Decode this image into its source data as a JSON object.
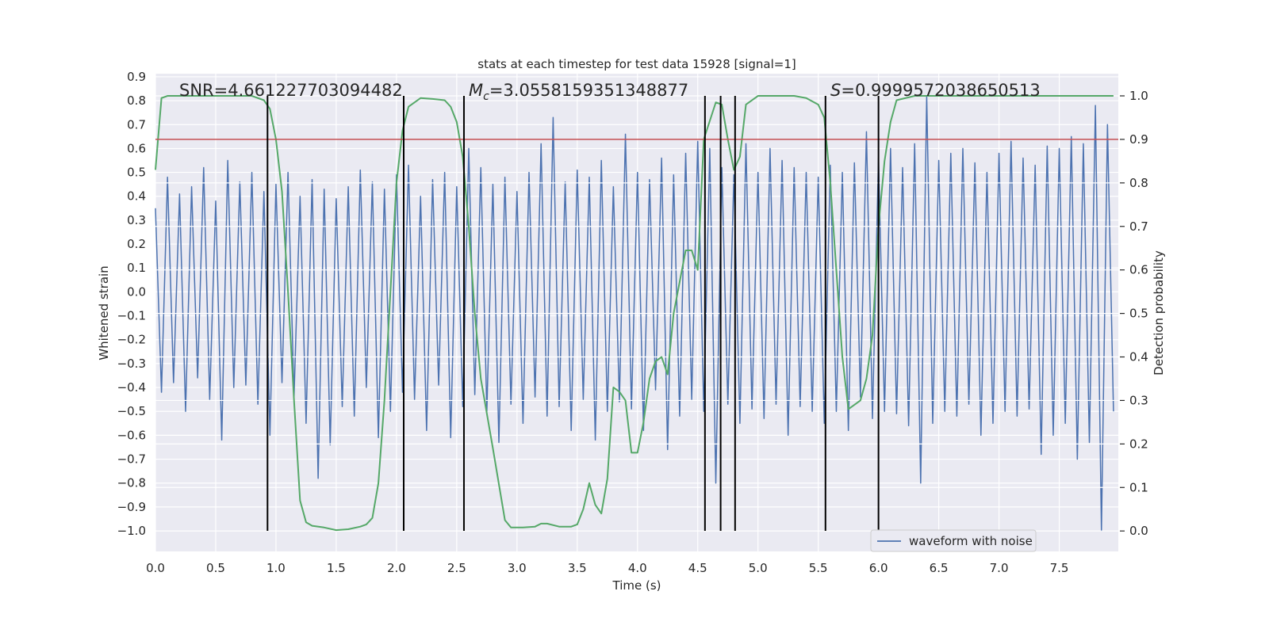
{
  "chart_data": {
    "type": "line",
    "title": "stats at each timestep for test data 15928 [signal=1]",
    "x_label": "Time (s)",
    "y_label": "Whitened strain",
    "y2_label": "Detection probability",
    "annotations": [
      {
        "text": "SNR=4.661227703094482"
      },
      {
        "symbol": "M",
        "subscript": "c",
        "text": "=3.0558159351348877"
      },
      {
        "symbol": "S",
        "text": "=0.9999572038650513"
      }
    ],
    "xlim": [
      0,
      7.99
    ],
    "ylim": [
      -1.086,
      0.913
    ],
    "y2lim": [
      -0.047,
      1.051
    ],
    "xticks": [
      {
        "value": 0,
        "label": "0.0"
      },
      {
        "value": 0.5,
        "label": "0.5"
      },
      {
        "value": 1,
        "label": "1.0"
      },
      {
        "value": 1.5,
        "label": "1.5"
      },
      {
        "value": 2,
        "label": "2.0"
      },
      {
        "value": 2.5,
        "label": "2.5"
      },
      {
        "value": 3,
        "label": "3.0"
      },
      {
        "value": 3.5,
        "label": "3.5"
      },
      {
        "value": 4,
        "label": "4.0"
      },
      {
        "value": 4.5,
        "label": "4.5"
      },
      {
        "value": 5,
        "label": "5.0"
      },
      {
        "value": 5.5,
        "label": "5.5"
      },
      {
        "value": 6,
        "label": "6.0"
      },
      {
        "value": 6.5,
        "label": "6.5"
      },
      {
        "value": 7,
        "label": "7.0"
      },
      {
        "value": 7.5,
        "label": "7.5"
      }
    ],
    "yticks": [
      {
        "value": -1,
        "label": "−1.0"
      },
      {
        "value": -0.9,
        "label": "−0.9"
      },
      {
        "value": -0.8,
        "label": "−0.8"
      },
      {
        "value": -0.7,
        "label": "−0.7"
      },
      {
        "value": -0.6,
        "label": "−0.6"
      },
      {
        "value": -0.5,
        "label": "−0.5"
      },
      {
        "value": -0.4,
        "label": "−0.4"
      },
      {
        "value": -0.3,
        "label": "−0.3"
      },
      {
        "value": -0.2,
        "label": "−0.2"
      },
      {
        "value": -0.1,
        "label": "−0.1"
      },
      {
        "value": 0,
        "label": "0.0"
      },
      {
        "value": 0.1,
        "label": "0.1"
      },
      {
        "value": 0.2,
        "label": "0.2"
      },
      {
        "value": 0.3,
        "label": "0.3"
      },
      {
        "value": 0.4,
        "label": "0.4"
      },
      {
        "value": 0.5,
        "label": "0.5"
      },
      {
        "value": 0.6,
        "label": "0.6"
      },
      {
        "value": 0.7,
        "label": "0.7"
      },
      {
        "value": 0.8,
        "label": "0.8"
      },
      {
        "value": 0.9,
        "label": "0.9"
      }
    ],
    "y2ticks": [
      {
        "value": 0,
        "label": "0.0"
      },
      {
        "value": 0.1,
        "label": "0.1"
      },
      {
        "value": 0.2,
        "label": "0.2"
      },
      {
        "value": 0.3,
        "label": "0.3"
      },
      {
        "value": 0.4,
        "label": "0.4"
      },
      {
        "value": 0.5,
        "label": "0.5"
      },
      {
        "value": 0.6,
        "label": "0.6"
      },
      {
        "value": 0.7,
        "label": "0.7"
      },
      {
        "value": 0.8,
        "label": "0.8"
      },
      {
        "value": 0.9,
        "label": "0.9"
      },
      {
        "value": 1,
        "label": "1.0"
      }
    ],
    "grid": true,
    "legend": "lower right",
    "threshold": 0.9,
    "threshold_color": "#c44e52",
    "vlines": [
      0.93,
      2.06,
      2.56,
      4.56,
      4.69,
      4.81,
      5.56,
      6.0
    ],
    "vline_range": [
      -1.0,
      0.82
    ],
    "vline_color": "#000000",
    "series": [
      {
        "name": "waveform with noise",
        "color": "#4c72b0",
        "x": [
          0,
          0.05,
          0.1,
          0.15,
          0.2,
          0.25,
          0.3,
          0.35,
          0.4,
          0.45,
          0.5,
          0.55,
          0.6,
          0.65,
          0.7,
          0.75,
          0.8,
          0.85,
          0.9,
          0.95,
          1,
          1.05,
          1.1,
          1.15,
          1.2,
          1.25,
          1.3,
          1.35,
          1.4,
          1.45,
          1.5,
          1.55,
          1.6,
          1.65,
          1.7,
          1.75,
          1.8,
          1.85,
          1.9,
          1.95,
          2,
          2.05,
          2.1,
          2.15,
          2.2,
          2.25,
          2.3,
          2.35,
          2.4,
          2.45,
          2.5,
          2.55,
          2.6,
          2.65,
          2.7,
          2.75,
          2.8,
          2.85,
          2.9,
          2.95,
          3,
          3.05,
          3.1,
          3.15,
          3.2,
          3.25,
          3.3,
          3.35,
          3.4,
          3.45,
          3.5,
          3.55,
          3.6,
          3.65,
          3.7,
          3.75,
          3.8,
          3.85,
          3.9,
          3.95,
          4,
          4.05,
          4.1,
          4.15,
          4.2,
          4.25,
          4.3,
          4.35,
          4.4,
          4.45,
          4.5,
          4.55,
          4.6,
          4.65,
          4.7,
          4.75,
          4.8,
          4.85,
          4.9,
          4.95,
          5,
          5.05,
          5.1,
          5.15,
          5.2,
          5.25,
          5.3,
          5.35,
          5.4,
          5.45,
          5.5,
          5.55,
          5.6,
          5.65,
          5.7,
          5.75,
          5.8,
          5.85,
          5.9,
          5.95,
          6,
          6.05,
          6.1,
          6.15,
          6.2,
          6.25,
          6.3,
          6.35,
          6.4,
          6.45,
          6.5,
          6.55,
          6.6,
          6.65,
          6.7,
          6.75,
          6.8,
          6.85,
          6.9,
          6.95,
          7,
          7.05,
          7.1,
          7.15,
          7.2,
          7.25,
          7.3,
          7.35,
          7.4,
          7.45,
          7.5,
          7.55,
          7.6,
          7.65,
          7.7,
          7.75,
          7.8,
          7.85,
          7.9,
          7.95
        ],
        "values": [
          0.35,
          -0.42,
          0.48,
          -0.38,
          0.41,
          -0.5,
          0.44,
          -0.36,
          0.52,
          -0.45,
          0.38,
          -0.62,
          0.55,
          -0.4,
          0.46,
          -0.39,
          0.5,
          -0.47,
          0.42,
          -0.6,
          0.45,
          -0.38,
          0.5,
          -0.44,
          0.4,
          -0.55,
          0.47,
          -0.78,
          0.43,
          -0.64,
          0.39,
          -0.48,
          0.44,
          -0.52,
          0.51,
          -0.4,
          0.46,
          -0.61,
          0.43,
          -0.5,
          0.49,
          -0.42,
          0.53,
          -0.45,
          0.4,
          -0.58,
          0.47,
          -0.39,
          0.5,
          -0.61,
          0.44,
          -0.48,
          0.6,
          -0.43,
          0.52,
          -0.5,
          0.45,
          -0.63,
          0.48,
          -0.47,
          0.42,
          -0.55,
          0.5,
          -0.44,
          0.62,
          -0.52,
          0.73,
          -0.48,
          0.46,
          -0.58,
          0.51,
          -0.45,
          0.48,
          -0.62,
          0.55,
          -0.5,
          0.44,
          -0.46,
          0.66,
          -0.49,
          0.5,
          -0.58,
          0.47,
          -0.41,
          0.56,
          -0.66,
          0.49,
          -0.52,
          0.58,
          -0.45,
          0.63,
          -0.5,
          0.6,
          -0.8,
          0.52,
          -0.47,
          0.49,
          -0.55,
          0.62,
          -0.49,
          0.5,
          -0.53,
          0.6,
          -0.47,
          0.55,
          -0.6,
          0.52,
          -0.48,
          0.5,
          -0.5,
          0.48,
          -0.55,
          0.53,
          -0.5,
          0.5,
          -0.58,
          0.54,
          -0.44,
          0.67,
          -0.53,
          0.56,
          -0.5,
          0.6,
          -0.51,
          0.52,
          -0.56,
          0.62,
          -0.8,
          0.82,
          -0.55,
          0.55,
          -0.5,
          0.58,
          -0.52,
          0.6,
          -0.47,
          0.54,
          -0.6,
          0.5,
          -0.55,
          0.58,
          -0.5,
          0.63,
          -0.52,
          0.56,
          -0.49,
          0.53,
          -0.68,
          0.61,
          -0.6,
          0.6,
          -0.55,
          0.65,
          -0.7,
          0.62,
          -0.63,
          0.78,
          -1.0,
          0.7,
          -0.5
        ]
      },
      {
        "color": "#55a868",
        "axis": "y2",
        "x": [
          0,
          0.05,
          0.1,
          0.8,
          0.85,
          0.9,
          0.95,
          1,
          1.05,
          1.1,
          1.15,
          1.2,
          1.25,
          1.3,
          1.4,
          1.5,
          1.6,
          1.7,
          1.75,
          1.8,
          1.85,
          1.9,
          1.95,
          2,
          2.05,
          2.1,
          2.2,
          2.3,
          2.4,
          2.45,
          2.5,
          2.55,
          2.6,
          2.65,
          2.7,
          2.8,
          2.9,
          2.95,
          3.05,
          3.15,
          3.2,
          3.25,
          3.35,
          3.45,
          3.5,
          3.55,
          3.6,
          3.65,
          3.7,
          3.75,
          3.8,
          3.85,
          3.9,
          3.95,
          4,
          4.05,
          4.1,
          4.15,
          4.2,
          4.25,
          4.3,
          4.4,
          4.45,
          4.5,
          4.55,
          4.65,
          4.7,
          4.75,
          4.8,
          4.85,
          4.9,
          5,
          5.3,
          5.4,
          5.5,
          5.55,
          5.6,
          5.65,
          5.7,
          5.75,
          5.8,
          5.85,
          5.9,
          5.95,
          6,
          6.05,
          6.1,
          6.15,
          6.3,
          7.95
        ],
        "values": [
          0.83,
          0.995,
          1.0,
          1.0,
          0.995,
          0.99,
          0.97,
          0.9,
          0.78,
          0.55,
          0.3,
          0.07,
          0.02,
          0.012,
          0.008,
          0.002,
          0.004,
          0.01,
          0.015,
          0.03,
          0.11,
          0.3,
          0.55,
          0.8,
          0.92,
          0.975,
          0.995,
          0.993,
          0.99,
          0.975,
          0.94,
          0.86,
          0.7,
          0.5,
          0.35,
          0.19,
          0.025,
          0.008,
          0.008,
          0.01,
          0.017,
          0.017,
          0.01,
          0.01,
          0.015,
          0.05,
          0.11,
          0.06,
          0.04,
          0.12,
          0.33,
          0.32,
          0.3,
          0.18,
          0.18,
          0.25,
          0.35,
          0.39,
          0.4,
          0.36,
          0.5,
          0.645,
          0.645,
          0.6,
          0.9,
          0.985,
          0.98,
          0.9,
          0.83,
          0.86,
          0.98,
          1.0,
          1.0,
          0.995,
          0.98,
          0.95,
          0.8,
          0.6,
          0.4,
          0.28,
          0.29,
          0.3,
          0.35,
          0.45,
          0.7,
          0.85,
          0.94,
          0.99,
          1.0,
          1.0
        ]
      }
    ]
  }
}
